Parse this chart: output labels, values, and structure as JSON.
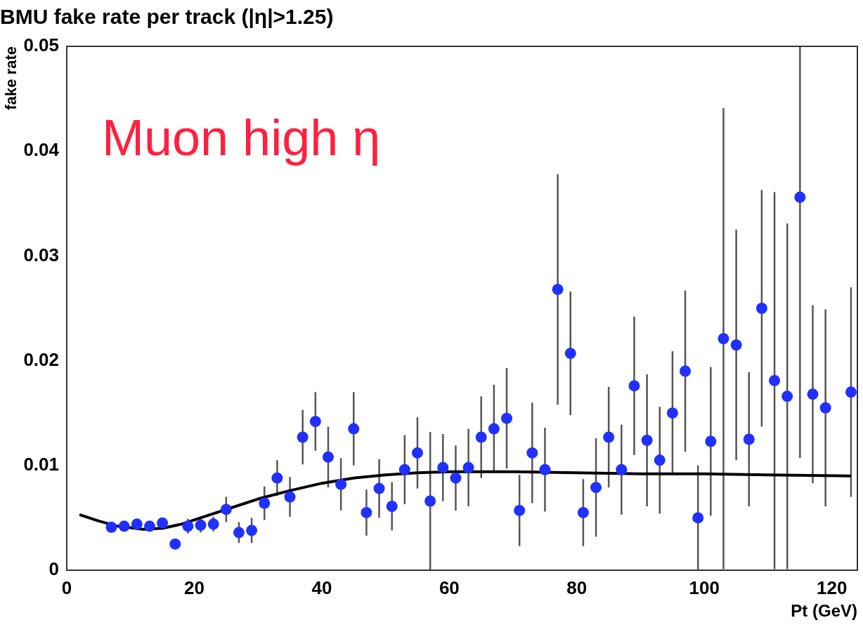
{
  "chart_data": {
    "type": "scatter",
    "title": "BMU fake rate per track (|η|>1.25)",
    "xlabel": "Pt (GeV)",
    "ylabel": "fake rate",
    "annotations": [
      "Muon high η"
    ],
    "xlim": [
      0,
      124
    ],
    "xticks": [
      0,
      20,
      40,
      60,
      80,
      100,
      120
    ],
    "ylim": [
      0,
      0.05
    ],
    "yticks": [
      0,
      0.01,
      0.02,
      0.03,
      0.04,
      0.05
    ],
    "grid": false,
    "legend": false,
    "marker": "circle",
    "series": [
      {
        "color": "#2030ff",
        "x": [
          7,
          9,
          11,
          13,
          15,
          17,
          19,
          21,
          23,
          25,
          27,
          29,
          31,
          33,
          35,
          37,
          39,
          41,
          43,
          45,
          47,
          49,
          51,
          53,
          55,
          57,
          59,
          61,
          63,
          65,
          67,
          69,
          71,
          73,
          75,
          77,
          79,
          81,
          83,
          85,
          87,
          89,
          91,
          93,
          95,
          97,
          99,
          101,
          103,
          105,
          107,
          109,
          111,
          113,
          115,
          117,
          119,
          123
        ],
        "values": [
          0.0041,
          0.0042,
          0.0044,
          0.0042,
          0.0045,
          0.0025,
          0.0042,
          0.0043,
          0.0044,
          0.0058,
          0.0036,
          0.0038,
          0.0064,
          0.0088,
          0.007,
          0.0127,
          0.0142,
          0.0108,
          0.0082,
          0.0135,
          0.0055,
          0.0078,
          0.0061,
          0.0096,
          0.0112,
          0.0066,
          0.0098,
          0.0088,
          0.0098,
          0.0127,
          0.0135,
          0.0145,
          0.0057,
          0.0112,
          0.0096,
          0.0268,
          0.0207,
          0.0055,
          0.0079,
          0.0127,
          0.0096,
          0.0176,
          0.0124,
          0.0105,
          0.015,
          0.019,
          0.005,
          0.0123,
          0.0221,
          0.0215,
          0.0125,
          0.025,
          0.0181,
          0.0166,
          0.0356,
          0.0168,
          0.0155,
          0.017
        ],
        "errors": [
          null,
          null,
          null,
          null,
          null,
          null,
          0.0007,
          0.0007,
          0.0007,
          0.0012,
          0.001,
          0.0012,
          0.0016,
          0.0017,
          0.0019,
          0.0026,
          0.0028,
          0.0029,
          0.0025,
          0.0035,
          0.0022,
          0.0028,
          0.0023,
          0.0033,
          0.0034,
          0.0066,
          0.0032,
          0.0031,
          0.0037,
          0.0039,
          0.0042,
          0.0048,
          0.0034,
          0.0048,
          0.004,
          0.011,
          0.0059,
          0.0032,
          0.0047,
          0.0048,
          0.0043,
          0.0066,
          0.0063,
          0.0051,
          0.0059,
          0.0077,
          0.005,
          0.0071,
          0.022,
          0.011,
          0.0064,
          0.0113,
          0.018,
          0.0165,
          [
            0.0107,
            0.05
          ],
          0.0085,
          0.0094,
          0.01
        ]
      },
      {
        "type": "line",
        "color": "#000000",
        "marker": "none",
        "x": [
          2,
          5,
          8,
          12,
          15,
          18,
          22,
          26,
          30,
          35,
          40,
          45,
          50,
          55,
          60,
          70,
          80,
          90,
          100,
          110,
          123
        ],
        "values": [
          0.0053,
          0.0047,
          0.0042,
          0.0039,
          0.004,
          0.0044,
          0.0052,
          0.006,
          0.0068,
          0.0076,
          0.0083,
          0.0088,
          0.0091,
          0.0093,
          0.0094,
          0.0094,
          0.0093,
          0.0092,
          0.0092,
          0.0091,
          0.009
        ]
      }
    ]
  }
}
